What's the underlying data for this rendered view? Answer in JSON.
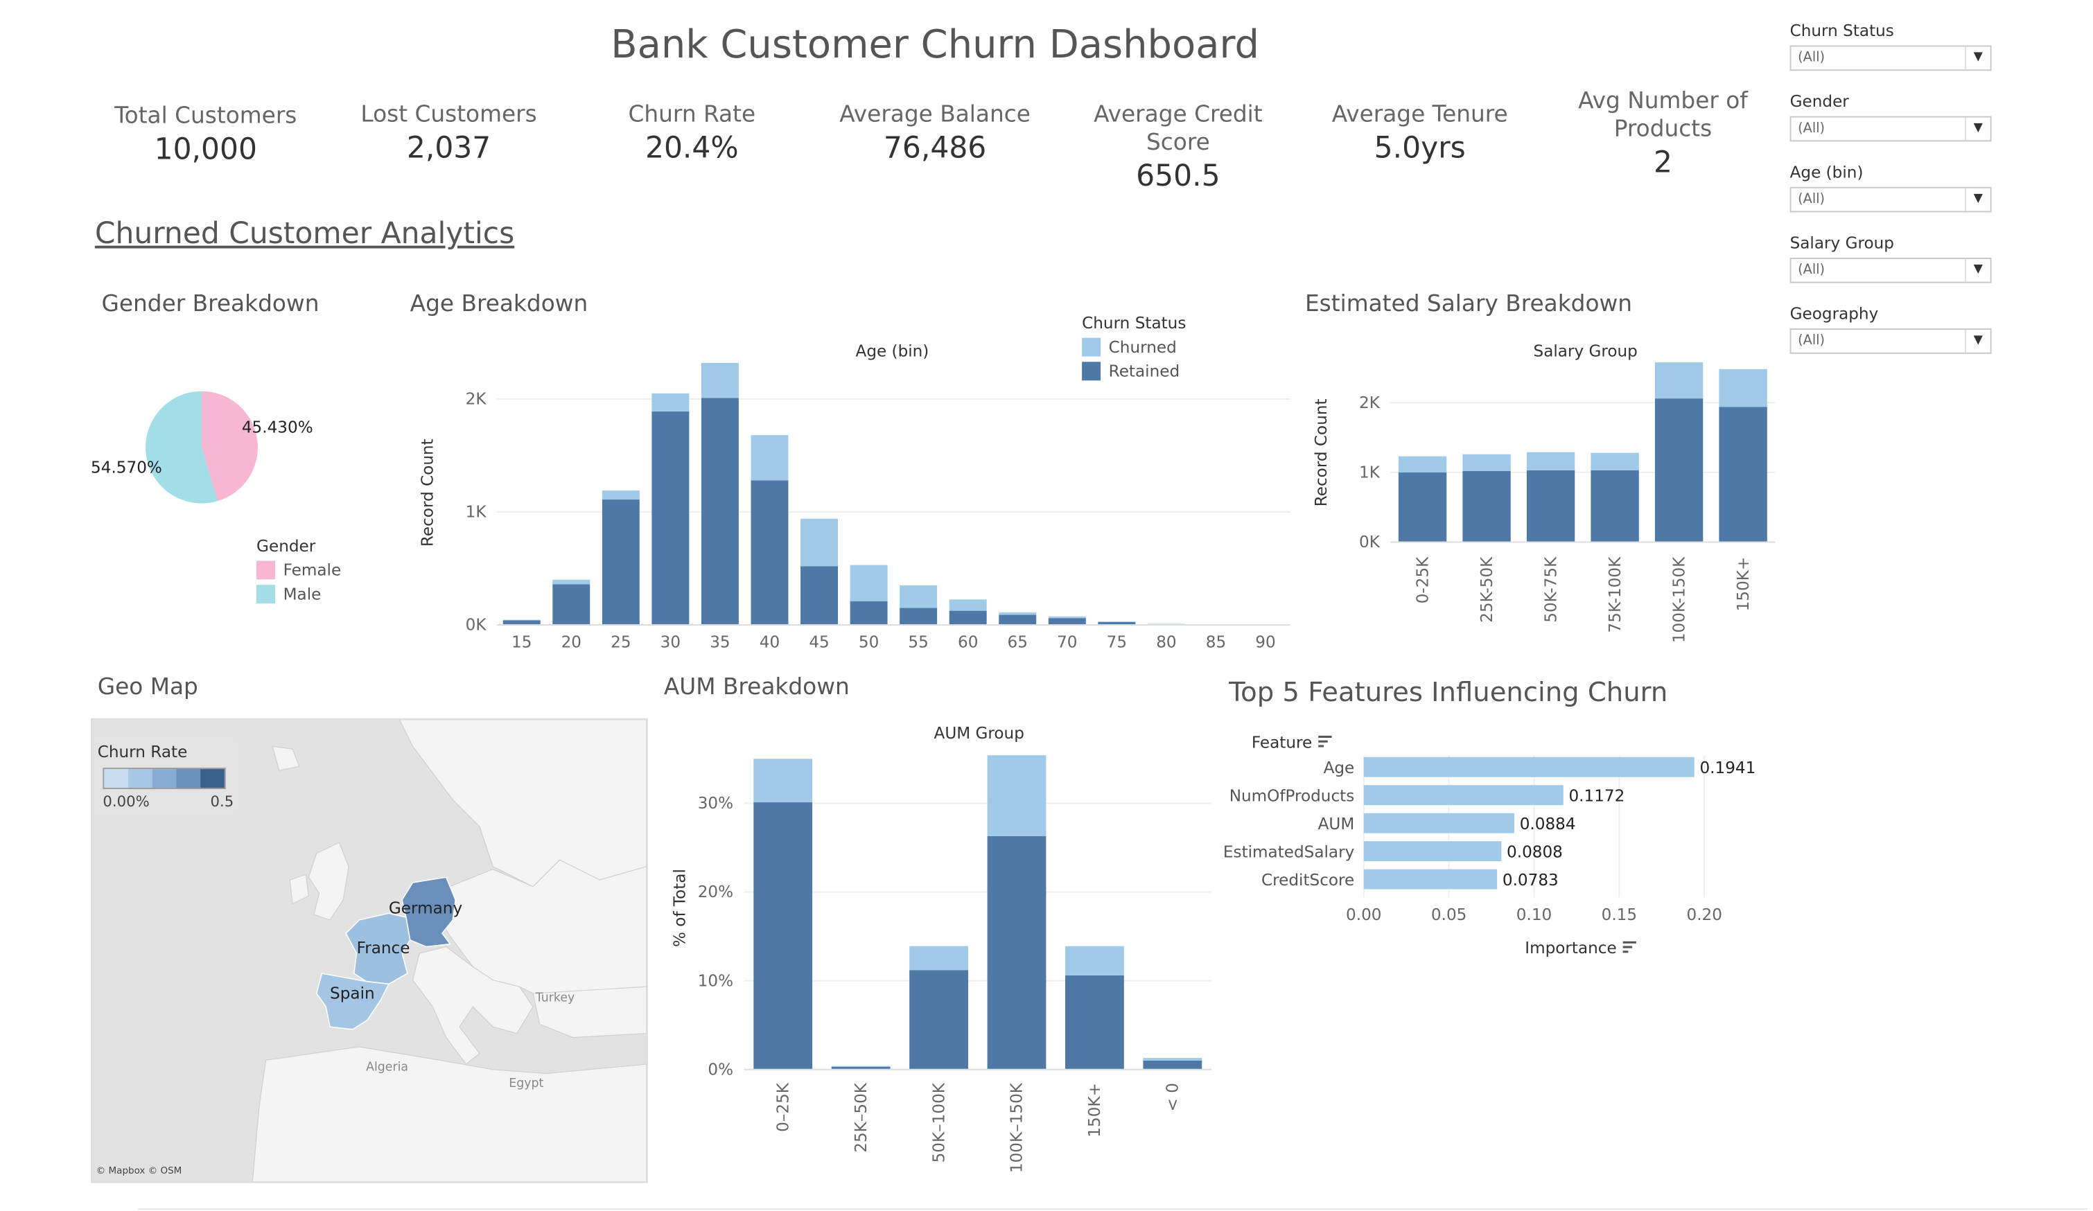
{
  "title": "Bank Customer Churn Dashboard",
  "kpis": [
    {
      "label": "Total Customers",
      "value": "10,000"
    },
    {
      "label": "Lost Customers",
      "value": "2,037"
    },
    {
      "label": "Churn Rate",
      "value": "20.4%"
    },
    {
      "label": "Average Balance",
      "value": "76,486"
    },
    {
      "label": "Average Credit Score",
      "value": "650.5"
    },
    {
      "label": "Average Tenure",
      "value": "5.0yrs"
    },
    {
      "label": "Avg Number of Products",
      "value": "2"
    }
  ],
  "section_title": "Churned Customer Analytics",
  "filters": [
    {
      "label": "Churn Status",
      "value": "(All)"
    },
    {
      "label": "Gender",
      "value": "(All)"
    },
    {
      "label": "Age (bin)",
      "value": "(All)"
    },
    {
      "label": "Salary Group",
      "value": "(All)"
    },
    {
      "label": "Geography",
      "value": "(All)"
    }
  ],
  "colors": {
    "churned": "#a0cbe8",
    "retained": "#4e79a7",
    "female": "#f7b6d2",
    "male": "#a3dde8",
    "feature_bar": "#a0cbe8"
  },
  "gender_panel": {
    "title": "Gender Breakdown",
    "legend_title": "Gender",
    "legend": [
      "Female",
      "Male"
    ]
  },
  "age_panel": {
    "title": "Age Breakdown",
    "legend_title": "Churn Status",
    "legend": [
      "Churned",
      "Retained"
    ]
  },
  "salary_panel": {
    "title": "Estimated Salary Breakdown"
  },
  "geo_panel": {
    "title": "Geo Map",
    "legend_title": "Churn Rate",
    "legend_min": "0.00%",
    "legend_max": "0.5",
    "attribution": "© Mapbox © OSM",
    "countries": [
      "Germany",
      "France",
      "Spain"
    ],
    "places": [
      "Turkey",
      "Algeria",
      "Egypt"
    ]
  },
  "aum_panel": {
    "title": "AUM Breakdown"
  },
  "features_panel": {
    "title": "Top 5 Features Influencing Churn"
  },
  "chart_data": [
    {
      "type": "pie",
      "categories": [
        "Female",
        "Male"
      ],
      "values": [
        45.43,
        54.57
      ],
      "labels": [
        "45.430%",
        "54.570%"
      ]
    },
    {
      "type": "bar",
      "stacked": true,
      "title": "Age (bin)",
      "ylabel": "Record Count",
      "categories": [
        "15",
        "20",
        "25",
        "30",
        "35",
        "40",
        "45",
        "50",
        "55",
        "60",
        "65",
        "70",
        "75",
        "80",
        "85",
        "90"
      ],
      "series": [
        {
          "name": "Retained",
          "values": [
            40,
            360,
            1110,
            1890,
            2010,
            1280,
            520,
            210,
            150,
            125,
            90,
            60,
            25,
            7,
            0,
            0
          ]
        },
        {
          "name": "Churned",
          "values": [
            5,
            40,
            80,
            160,
            310,
            400,
            420,
            320,
            200,
            100,
            20,
            15,
            5,
            2,
            0,
            0
          ]
        }
      ],
      "y_ticks": [
        "0K",
        "1K",
        "2K"
      ],
      "ylim": [
        0,
        2400
      ],
      "legend": "top-right"
    },
    {
      "type": "bar",
      "stacked": true,
      "title": "Salary Group",
      "ylabel": "Record Count",
      "categories": [
        "0-25K",
        "25K-50K",
        "50K-75K",
        "75K-100K",
        "100K-150K",
        "150K+"
      ],
      "series": [
        {
          "name": "Retained",
          "values": [
            1000,
            1020,
            1030,
            1030,
            2060,
            1940
          ]
        },
        {
          "name": "Churned",
          "values": [
            230,
            240,
            260,
            250,
            520,
            540
          ]
        }
      ],
      "y_ticks": [
        "0K",
        "1K",
        "2K"
      ],
      "ylim": [
        0,
        2700
      ]
    },
    {
      "type": "bar",
      "stacked": true,
      "title": "AUM Group",
      "ylabel": "% of Total",
      "categories": [
        "0–25K",
        "25K–50K",
        "50K–100K",
        "100K–150K",
        "150K+",
        "< 0"
      ],
      "series": [
        {
          "name": "Retained",
          "values": [
            30.1,
            0.3,
            11.2,
            26.3,
            10.6,
            1.0
          ]
        },
        {
          "name": "Churned",
          "values": [
            4.9,
            0.1,
            2.7,
            9.1,
            3.3,
            0.3
          ]
        }
      ],
      "y_ticks": [
        "0%",
        "10%",
        "20%",
        "30%"
      ],
      "ylim": [
        0,
        37
      ]
    },
    {
      "type": "bar",
      "orientation": "horizontal",
      "ylabel": "Feature",
      "xlabel": "Importance",
      "categories": [
        "Age",
        "NumOfProducts",
        "AUM",
        "EstimatedSalary",
        "CreditScore"
      ],
      "values": [
        0.1941,
        0.1172,
        0.0884,
        0.0808,
        0.0783
      ],
      "labels": [
        "0.1941",
        "0.1172",
        "0.0884",
        "0.0808",
        "0.0783"
      ],
      "x_ticks": [
        "0.00",
        "0.05",
        "0.10",
        "0.15",
        "0.20"
      ],
      "xlim": [
        0,
        0.2
      ]
    }
  ]
}
